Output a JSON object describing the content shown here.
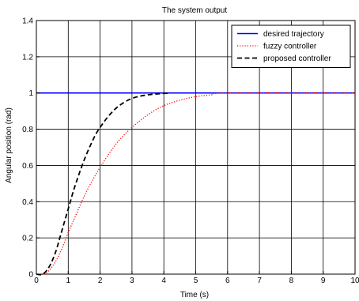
{
  "chart_data": {
    "type": "line",
    "title": "The system output",
    "xlabel": "Time (s)",
    "ylabel": "Angular position (rad)",
    "xlim": [
      0,
      10
    ],
    "ylim": [
      0,
      1.4
    ],
    "xticks": [
      "0",
      "1",
      "2",
      "3",
      "4",
      "5",
      "6",
      "7",
      "8",
      "9",
      "10"
    ],
    "yticks": [
      "0",
      "0.2",
      "0.4",
      "0.6",
      "0.8",
      "1",
      "1.2",
      "1.4"
    ],
    "grid": true,
    "legend_position": "top-right",
    "series": [
      {
        "name": "desired trajectory",
        "color": "#0000ff",
        "style": "solid",
        "points": [
          [
            0,
            1
          ],
          [
            10,
            1
          ]
        ]
      },
      {
        "name": "fuzzy controller",
        "color": "#ff0000",
        "style": "dotted",
        "points": [
          [
            0,
            0
          ],
          [
            0.2,
            0
          ],
          [
            0.4,
            0.02
          ],
          [
            0.6,
            0.07
          ],
          [
            0.8,
            0.14
          ],
          [
            1.0,
            0.23
          ],
          [
            1.2,
            0.31
          ],
          [
            1.5,
            0.43
          ],
          [
            1.8,
            0.53
          ],
          [
            2.0,
            0.59
          ],
          [
            2.3,
            0.67
          ],
          [
            2.6,
            0.74
          ],
          [
            3.0,
            0.81
          ],
          [
            3.5,
            0.88
          ],
          [
            4.0,
            0.93
          ],
          [
            4.5,
            0.96
          ],
          [
            5.0,
            0.98
          ],
          [
            5.5,
            0.99
          ],
          [
            6.0,
            1.0
          ],
          [
            10,
            1.0
          ]
        ]
      },
      {
        "name": "proposed controller",
        "color": "#000000",
        "style": "dashed",
        "points": [
          [
            0,
            0
          ],
          [
            0.2,
            0.0
          ],
          [
            0.4,
            0.04
          ],
          [
            0.6,
            0.12
          ],
          [
            0.8,
            0.24
          ],
          [
            1.0,
            0.36
          ],
          [
            1.2,
            0.48
          ],
          [
            1.5,
            0.63
          ],
          [
            1.8,
            0.75
          ],
          [
            2.0,
            0.81
          ],
          [
            2.3,
            0.88
          ],
          [
            2.6,
            0.93
          ],
          [
            3.0,
            0.97
          ],
          [
            3.5,
            0.99
          ],
          [
            4.2,
            1.0
          ]
        ]
      }
    ]
  }
}
